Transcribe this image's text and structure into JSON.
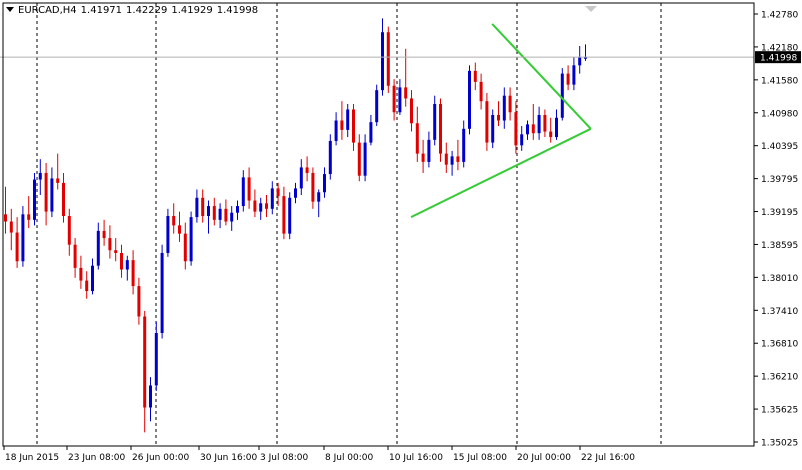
{
  "header": {
    "symbol": "EURCAD,H4",
    "open": "1.41971",
    "high": "1.42229",
    "low": "1.41929",
    "close": "1.41998"
  },
  "colors": {
    "background": "#ffffff",
    "bull": "#0000cc",
    "bear": "#e00000",
    "triangle": "#33cc33",
    "grid": "#000000",
    "price_label_bg": "#000000"
  },
  "chart_data": {
    "type": "candlestick",
    "symbol": "EURCAD",
    "timeframe": "H4",
    "current_price": "1.41998",
    "y_ticks": [
      "1.42780",
      "1.42180",
      "1.41580",
      "1.40980",
      "1.40395",
      "1.39795",
      "1.39195",
      "1.38595",
      "1.38010",
      "1.37410",
      "1.36810",
      "1.36210",
      "1.35625",
      "1.35025"
    ],
    "x_ticks": [
      "18 Jun 2015",
      "23 Jun 08:00",
      "26 Jun 00:00",
      "30 Jun 16:00",
      "3 Jul 08:00",
      "8 Jul 00:00",
      "10 Jul 16:00",
      "15 Jul 08:00",
      "20 Jul 00:00",
      "22 Jul 16:00"
    ],
    "ylim": [
      1.35025,
      1.4278
    ],
    "candles": [
      [
        1.3915,
        1.3965,
        1.388,
        1.3902
      ],
      [
        1.3902,
        1.3925,
        1.385,
        1.3882
      ],
      [
        1.3882,
        1.391,
        1.3818,
        1.383
      ],
      [
        1.383,
        1.393,
        1.382,
        1.3915
      ],
      [
        1.3915,
        1.3948,
        1.389,
        1.3905
      ],
      [
        1.3905,
        1.399,
        1.3895,
        1.3978
      ],
      [
        1.3978,
        1.4015,
        1.395,
        1.399
      ],
      [
        1.399,
        1.4008,
        1.3895,
        1.392
      ],
      [
        1.392,
        1.4,
        1.391,
        1.398
      ],
      [
        1.398,
        1.4025,
        1.396,
        1.3972
      ],
      [
        1.3972,
        1.399,
        1.39,
        1.3912
      ],
      [
        1.3912,
        1.3925,
        1.384,
        1.386
      ],
      [
        1.386,
        1.3872,
        1.38,
        1.3818
      ],
      [
        1.3818,
        1.384,
        1.378,
        1.3795
      ],
      [
        1.3795,
        1.3812,
        1.3762,
        1.3776
      ],
      [
        1.3776,
        1.3835,
        1.377,
        1.3822
      ],
      [
        1.3822,
        1.39,
        1.3815,
        1.3885
      ],
      [
        1.3885,
        1.3905,
        1.3858,
        1.3872
      ],
      [
        1.3872,
        1.3895,
        1.3835,
        1.385
      ],
      [
        1.385,
        1.3872,
        1.383,
        1.3845
      ],
      [
        1.3845,
        1.386,
        1.38,
        1.3815
      ],
      [
        1.3815,
        1.384,
        1.3795,
        1.3832
      ],
      [
        1.3832,
        1.385,
        1.377,
        1.3785
      ],
      [
        1.3785,
        1.38,
        1.3715,
        1.373
      ],
      [
        1.373,
        1.374,
        1.352,
        1.3565
      ],
      [
        1.3565,
        1.362,
        1.354,
        1.3605
      ],
      [
        1.3605,
        1.372,
        1.3595,
        1.37
      ],
      [
        1.37,
        1.386,
        1.369,
        1.3845
      ],
      [
        1.3845,
        1.3925,
        1.3838,
        1.3912
      ],
      [
        1.3912,
        1.3935,
        1.388,
        1.3895
      ],
      [
        1.3895,
        1.392,
        1.3865,
        1.388
      ],
      [
        1.388,
        1.39,
        1.3815,
        1.383
      ],
      [
        1.383,
        1.392,
        1.3822,
        1.391
      ],
      [
        1.391,
        1.396,
        1.39,
        1.3945
      ],
      [
        1.3945,
        1.396,
        1.39,
        1.3912
      ],
      [
        1.3912,
        1.394,
        1.388,
        1.393
      ],
      [
        1.393,
        1.3945,
        1.3895,
        1.3905
      ],
      [
        1.3905,
        1.3935,
        1.389,
        1.3925
      ],
      [
        1.3925,
        1.3942,
        1.3895,
        1.3902
      ],
      [
        1.3902,
        1.393,
        1.3885,
        1.3918
      ],
      [
        1.3918,
        1.394,
        1.3905,
        1.393
      ],
      [
        1.393,
        1.3995,
        1.392,
        1.3982
      ],
      [
        1.3982,
        1.4,
        1.3925,
        1.394
      ],
      [
        1.394,
        1.396,
        1.391,
        1.392
      ],
      [
        1.392,
        1.3945,
        1.3905,
        1.3935
      ],
      [
        1.3935,
        1.395,
        1.391,
        1.3925
      ],
      [
        1.3925,
        1.3975,
        1.3915,
        1.3962
      ],
      [
        1.3962,
        1.3972,
        1.393,
        1.3948
      ],
      [
        1.3948,
        1.3965,
        1.387,
        1.388
      ],
      [
        1.388,
        1.3955,
        1.387,
        1.3945
      ],
      [
        1.3945,
        1.3972,
        1.3935,
        1.3962
      ],
      [
        1.3962,
        1.4015,
        1.395,
        1.4
      ],
      [
        1.4,
        1.402,
        1.3975,
        1.399
      ],
      [
        1.399,
        1.4,
        1.3925,
        1.3938
      ],
      [
        1.3938,
        1.396,
        1.391,
        1.3955
      ],
      [
        1.3955,
        1.4,
        1.3945,
        1.3988
      ],
      [
        1.3988,
        1.406,
        1.3978,
        1.4048
      ],
      [
        1.4048,
        1.41,
        1.404,
        1.4085
      ],
      [
        1.4085,
        1.412,
        1.405,
        1.4068
      ],
      [
        1.4068,
        1.4115,
        1.4055,
        1.4105
      ],
      [
        1.4105,
        1.4115,
        1.403,
        1.4045
      ],
      [
        1.4045,
        1.406,
        1.3975,
        1.3985
      ],
      [
        1.3985,
        1.406,
        1.3975,
        1.4045
      ],
      [
        1.4045,
        1.4095,
        1.404,
        1.4082
      ],
      [
        1.4082,
        1.415,
        1.4075,
        1.414
      ],
      [
        1.414,
        1.427,
        1.413,
        1.4245
      ],
      [
        1.4245,
        1.4255,
        1.4135,
        1.4148
      ],
      [
        1.4148,
        1.416,
        1.4085,
        1.41
      ],
      [
        1.41,
        1.416,
        1.4095,
        1.4145
      ],
      [
        1.4145,
        1.4215,
        1.411,
        1.4125
      ],
      [
        1.4125,
        1.414,
        1.4065,
        1.408
      ],
      [
        1.408,
        1.411,
        1.401,
        1.4025
      ],
      [
        1.4025,
        1.405,
        1.399,
        1.401
      ],
      [
        1.401,
        1.4065,
        1.4,
        1.405
      ],
      [
        1.405,
        1.413,
        1.404,
        1.4115
      ],
      [
        1.4115,
        1.4125,
        1.401,
        1.4025
      ],
      [
        1.4025,
        1.4045,
        1.399,
        1.4005
      ],
      [
        1.4005,
        1.403,
        1.3985,
        1.402
      ],
      [
        1.402,
        1.405,
        1.3995,
        1.401
      ],
      [
        1.401,
        1.4085,
        1.4,
        1.407
      ],
      [
        1.407,
        1.4185,
        1.406,
        1.4175
      ],
      [
        1.4175,
        1.419,
        1.414,
        1.4155
      ],
      [
        1.4155,
        1.417,
        1.4105,
        1.412
      ],
      [
        1.412,
        1.4135,
        1.403,
        1.4045
      ],
      [
        1.4045,
        1.4105,
        1.4035,
        1.4095
      ],
      [
        1.4095,
        1.412,
        1.4075,
        1.4085
      ],
      [
        1.4085,
        1.4145,
        1.407,
        1.413
      ],
      [
        1.413,
        1.4145,
        1.4085,
        1.41
      ],
      [
        1.41,
        1.412,
        1.4025,
        1.404
      ],
      [
        1.404,
        1.4075,
        1.403,
        1.406
      ],
      [
        1.406,
        1.4085,
        1.405,
        1.4078
      ],
      [
        1.4078,
        1.4115,
        1.405,
        1.4062
      ],
      [
        1.4062,
        1.411,
        1.405,
        1.4095
      ],
      [
        1.4095,
        1.4105,
        1.4055,
        1.4065
      ],
      [
        1.4065,
        1.409,
        1.4045,
        1.4055
      ],
      [
        1.4055,
        1.4105,
        1.405,
        1.409
      ],
      [
        1.409,
        1.418,
        1.4085,
        1.417
      ],
      [
        1.417,
        1.4185,
        1.414,
        1.415
      ],
      [
        1.415,
        1.42,
        1.414,
        1.4185
      ],
      [
        1.4185,
        1.422,
        1.417,
        1.42
      ],
      [
        1.4197,
        1.4223,
        1.4193,
        1.42
      ]
    ],
    "trendlines": [
      {
        "from": [
          70,
          1.391
        ],
        "to": [
          101,
          1.407
        ]
      },
      {
        "from": [
          84,
          1.426
        ],
        "to": [
          101,
          1.407
        ]
      }
    ]
  }
}
